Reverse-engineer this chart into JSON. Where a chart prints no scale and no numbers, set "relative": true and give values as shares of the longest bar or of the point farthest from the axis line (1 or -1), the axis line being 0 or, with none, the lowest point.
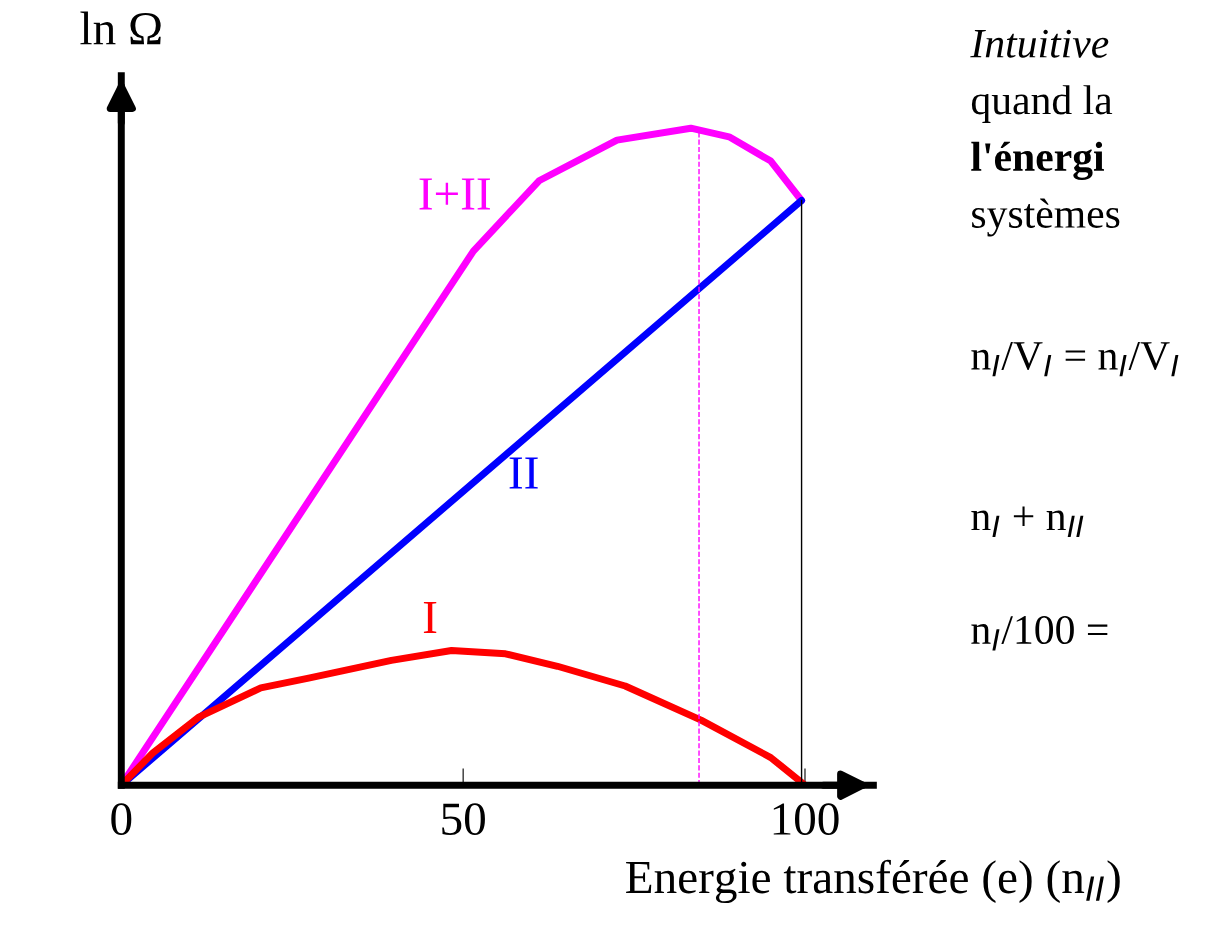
{
  "chart_data": {
    "type": "line",
    "relative": true,
    "ylabel": "ln Ω",
    "xlabel": "Energie transférée (e) (n$_{II}$)",
    "xlim": [
      0,
      110
    ],
    "xticks": [
      0,
      50,
      100
    ],
    "grid": false,
    "legend": false,
    "marker": "none",
    "line_style": "solid",
    "series": [
      {
        "name": "I+II",
        "color": "#ff00ff",
        "x": [
          0,
          51.5,
          61.1,
          72.5,
          83.3,
          88.9,
          95.0,
          99.5
        ],
        "values": [
          0,
          0.813,
          0.92,
          0.982,
          1,
          0.987,
          0.95,
          0.89
        ]
      },
      {
        "name": "II",
        "color": "#0000ff",
        "x": [
          0,
          99.5
        ],
        "values": [
          0,
          0.89
        ]
      },
      {
        "name": "I",
        "color": "#ff0000",
        "x": [
          0,
          4.6,
          11.4,
          20.4,
          27.4,
          39.5,
          48.3,
          56.2,
          63.8,
          73.7,
          84.8,
          95.0,
          100
        ],
        "values": [
          0,
          0.049,
          0.104,
          0.148,
          0.163,
          0.19,
          0.205,
          0.2,
          0.181,
          0.151,
          0.099,
          0.042,
          0
        ]
      }
    ],
    "ref_lines": [
      {
        "axis": "x",
        "value": 84.5,
        "color": "#ff00ff",
        "line_style": "dashed"
      },
      {
        "axis": "x",
        "value": 99.5,
        "color": "#000000",
        "line_style": "solid"
      }
    ],
    "annotations": [
      "Intuitive",
      "quand la",
      "l'énergi",
      "systèmes",
      "n$_{I}$/V$_{I}$ = n$_{I}$/V$_{I}$",
      "n$_{I}$ + n$_{II}$",
      "n$_{I}$/100 ="
    ]
  }
}
